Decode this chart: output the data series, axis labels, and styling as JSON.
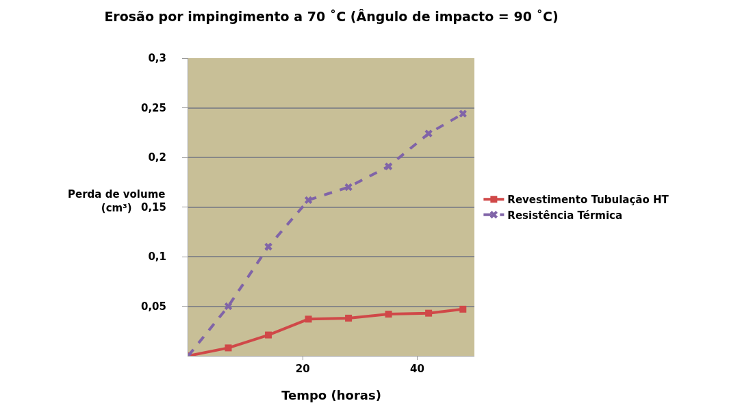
{
  "chart_data": {
    "type": "line",
    "title": "Erosão por impingimento a 70 ˚C (Ângulo de impacto = 90 ˚C)",
    "xlabel": "Tempo (horas)",
    "ylabel": "Perda de volume (cm³)",
    "x": [
      0,
      7,
      14,
      21,
      28,
      35,
      42,
      48
    ],
    "series": [
      {
        "name": "Revestimento Tubulação HT",
        "color": "#d04848",
        "marker": "square",
        "line_style": "solid",
        "values": [
          0,
          0.008,
          0.021,
          0.037,
          0.038,
          0.042,
          0.043,
          0.047
        ]
      },
      {
        "name": "Resistência Térmica",
        "color": "#8064a8",
        "marker": "cross",
        "line_style": "dashed",
        "values": [
          0,
          0.05,
          0.11,
          0.157,
          0.17,
          0.191,
          0.224,
          0.244
        ]
      }
    ],
    "xlim": [
      0,
      50
    ],
    "xticks": [
      20,
      40
    ],
    "ylim": [
      0,
      0.3
    ],
    "yticks": [
      {
        "value": 0.05,
        "label": "0,05"
      },
      {
        "value": 0.1,
        "label": "0,1"
      },
      {
        "value": 0.15,
        "label": "0,15"
      },
      {
        "value": 0.2,
        "label": "0,2"
      },
      {
        "value": 0.25,
        "label": "0,25"
      },
      {
        "value": 0.3,
        "label": "0,3"
      }
    ],
    "grid": "y",
    "legend": "right"
  }
}
